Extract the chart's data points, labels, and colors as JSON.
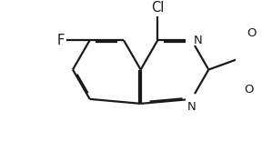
{
  "background_color": "#ffffff",
  "line_color": "#1a1a1a",
  "text_color": "#1a1a1a",
  "bond_width": 1.6,
  "dbo": 0.038,
  "figsize": [
    2.88,
    1.78
  ],
  "dpi": 100,
  "font_size": 9.5,
  "s": 1.0,
  "xlim": [
    -3.6,
    2.8
  ],
  "ylim": [
    -2.2,
    2.2
  ]
}
